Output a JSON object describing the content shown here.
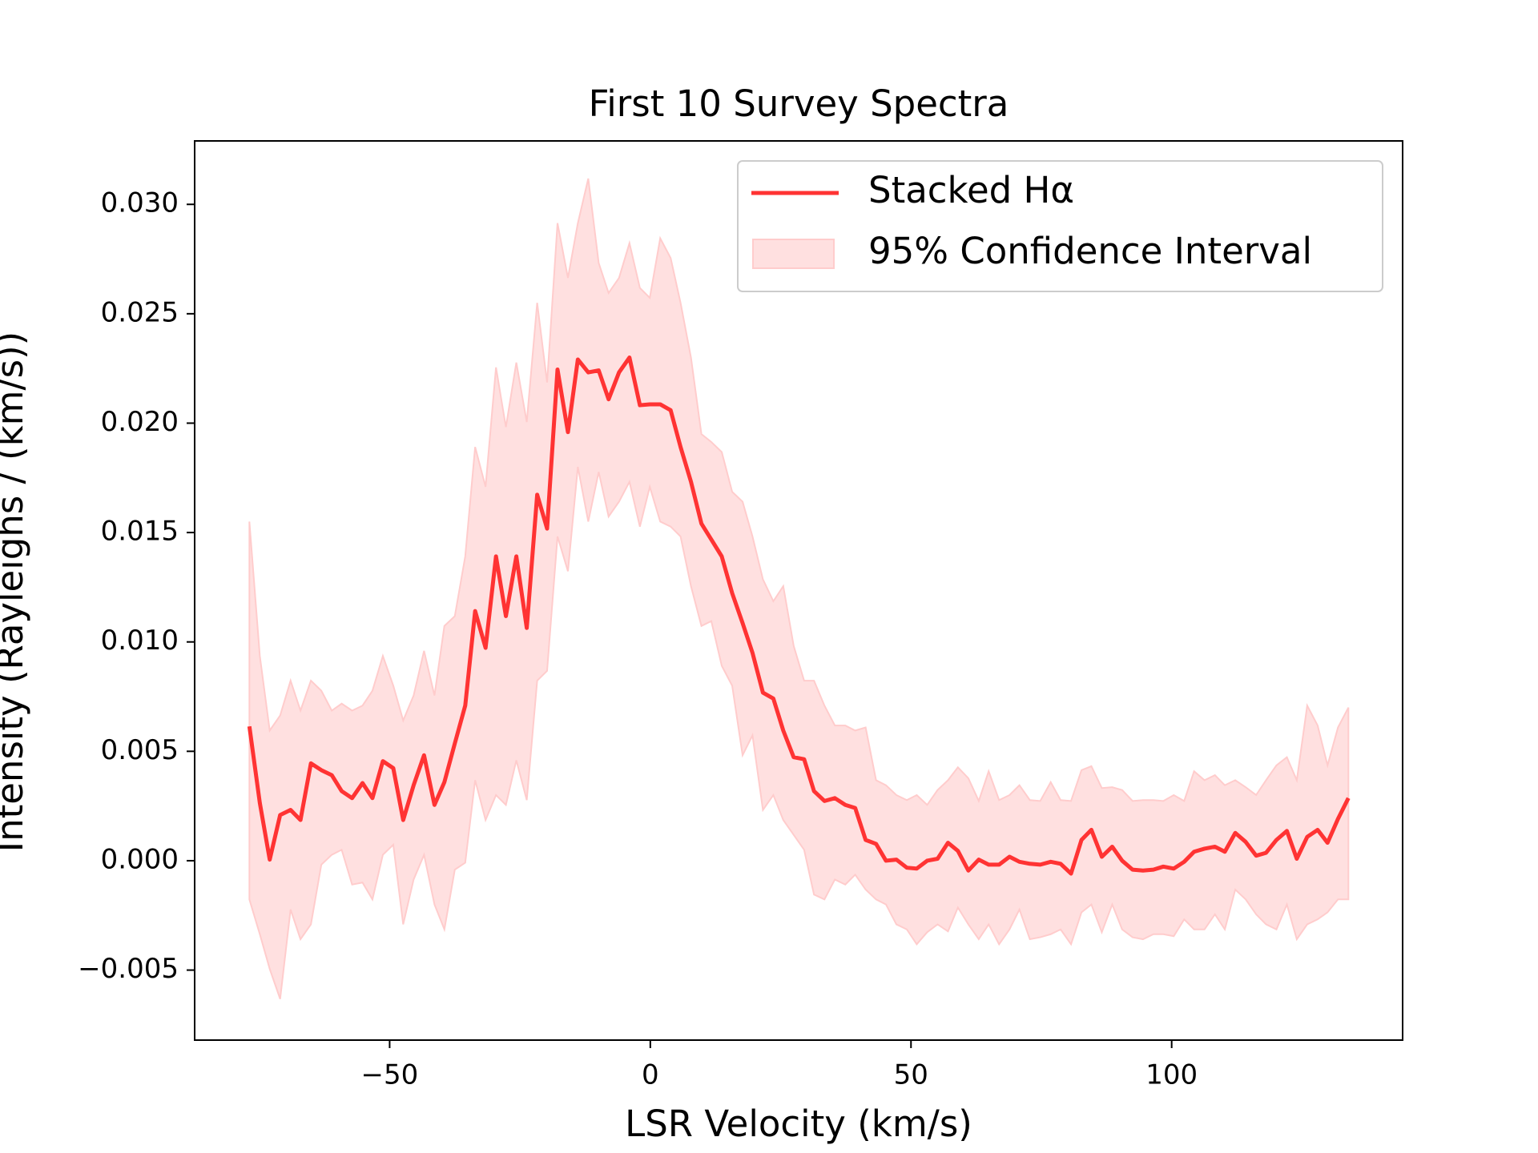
{
  "chart_data": {
    "type": "line",
    "title": "First 10 Survey Spectra",
    "x_label": "LSR Velocity (km/s)",
    "y_label": "Intensity (Rayleighs / (km/s))",
    "xlim": [
      -87.4,
      144.3
    ],
    "ylim": [
      -0.0082,
      0.0329
    ],
    "xticks": [
      {
        "value": -50,
        "label": "−50"
      },
      0,
      50,
      100
    ],
    "yticks": [
      {
        "value": -0.005,
        "label": "−0.005"
      },
      {
        "value": 0,
        "label": "0.000"
      },
      {
        "value": 0.005,
        "label": "0.005"
      },
      {
        "value": 0.01,
        "label": "0.010"
      },
      {
        "value": 0.015,
        "label": "0.015"
      },
      {
        "value": 0.02,
        "label": "0.020"
      },
      {
        "value": 0.025,
        "label": "0.025"
      },
      {
        "value": 0.03,
        "label": "0.030"
      }
    ],
    "legend": "upper right",
    "x": [
      -76.9,
      -74.9,
      -73.0,
      -71.0,
      -69.0,
      -67.1,
      -65.1,
      -63.1,
      -61.1,
      -59.2,
      -57.2,
      -55.2,
      -53.3,
      -51.3,
      -49.3,
      -47.4,
      -45.4,
      -43.4,
      -41.4,
      -39.5,
      -37.5,
      -35.5,
      -33.6,
      -31.6,
      -29.6,
      -27.7,
      -25.7,
      -23.7,
      -21.7,
      -19.8,
      -17.8,
      -15.8,
      -13.9,
      -11.9,
      -9.9,
      -8.0,
      -6.0,
      -4.0,
      -2.0,
      -0.1,
      1.9,
      3.9,
      5.8,
      7.8,
      9.8,
      11.7,
      13.7,
      15.7,
      17.7,
      19.6,
      21.6,
      23.6,
      25.5,
      27.5,
      29.5,
      31.4,
      33.4,
      35.4,
      37.4,
      39.3,
      41.3,
      43.3,
      45.2,
      47.2,
      49.2,
      51.1,
      53.1,
      55.1,
      57.1,
      59.0,
      61.0,
      63.0,
      64.9,
      66.9,
      68.9,
      70.8,
      72.8,
      74.8,
      76.8,
      78.7,
      80.7,
      82.7,
      84.6,
      86.6,
      88.6,
      90.5,
      92.5,
      94.5,
      96.5,
      98.4,
      100.4,
      102.4,
      104.3,
      106.3,
      108.3,
      110.2,
      112.2,
      114.2,
      116.2,
      118.1,
      120.1,
      122.1,
      124.0,
      126.0,
      128.0,
      129.9,
      131.9,
      133.9
    ],
    "series": [
      {
        "name": "Stacked Hα",
        "color": "#ff3333",
        "values": [
          0.00614,
          0.00264,
          5e-05,
          0.00209,
          0.00232,
          0.00186,
          0.00445,
          0.00414,
          0.00391,
          0.00318,
          0.00286,
          0.00355,
          0.00286,
          0.00455,
          0.00423,
          0.00186,
          0.00345,
          0.00482,
          0.00255,
          0.00359,
          0.00536,
          0.00709,
          0.01141,
          0.00973,
          0.01391,
          0.01118,
          0.01391,
          0.01064,
          0.01673,
          0.01518,
          0.02245,
          0.01959,
          0.02291,
          0.02232,
          0.02241,
          0.02109,
          0.02232,
          0.023,
          0.02082,
          0.02086,
          0.02086,
          0.02059,
          0.01891,
          0.01732,
          0.01541,
          0.01468,
          0.01391,
          0.01223,
          0.01086,
          0.0095,
          0.00768,
          0.00741,
          0.00595,
          0.00473,
          0.00464,
          0.00318,
          0.00273,
          0.00286,
          0.00255,
          0.00241,
          0.00095,
          0.00077,
          0,
          5e-05,
          -0.00032,
          -0.00036,
          0,
          9e-05,
          0.00082,
          0.00045,
          -0.00045,
          5e-05,
          -0.00018,
          -0.00018,
          0.00018,
          -5e-05,
          -0.00014,
          -0.00018,
          -5e-05,
          -0.00014,
          -0.00059,
          0.00095,
          0.00141,
          0.00018,
          0.00064,
          0,
          -0.00041,
          -0.00045,
          -0.00041,
          -0.00027,
          -0.00036,
          -5e-05,
          0.00041,
          0.00055,
          0.00064,
          0.00041,
          0.00127,
          0.00086,
          0.00023,
          0.00036,
          0.00095,
          0.00136,
          9e-05,
          0.00109,
          0.00141,
          0.00082,
          0.00191,
          0.00286
        ]
      },
      {
        "name": "95% Confidence Interval",
        "type": "band",
        "color": "#ffcccc",
        "upper": [
          0.0155,
          0.00936,
          0.00595,
          0.00664,
          0.00823,
          0.00686,
          0.00823,
          0.00777,
          0.00686,
          0.00718,
          0.00686,
          0.00709,
          0.00777,
          0.00936,
          0.008,
          0.00641,
          0.00755,
          0.00959,
          0.00755,
          0.01073,
          0.01118,
          0.01391,
          0.01891,
          0.01709,
          0.02255,
          0.01982,
          0.02277,
          0.02005,
          0.0255,
          0.02186,
          0.02914,
          0.02664,
          0.02914,
          0.03118,
          0.02732,
          0.02595,
          0.02664,
          0.02823,
          0.02618,
          0.02573,
          0.02845,
          0.02755,
          0.0255,
          0.023,
          0.0195,
          0.01914,
          0.01868,
          0.01686,
          0.01641,
          0.01482,
          0.01286,
          0.01186,
          0.01255,
          0.00982,
          0.00823,
          0.00823,
          0.00709,
          0.00618,
          0.00618,
          0.00595,
          0.00609,
          0.00368,
          0.00345,
          0.003,
          0.00277,
          0.003,
          0.00255,
          0.00323,
          0.00368,
          0.00427,
          0.00377,
          0.00273,
          0.00409,
          0.00277,
          0.003,
          0.00345,
          0.00277,
          0.00273,
          0.00359,
          0.00277,
          0.00273,
          0.00414,
          0.00432,
          0.00332,
          0.00336,
          0.00323,
          0.00273,
          0.00277,
          0.00277,
          0.00273,
          0.003,
          0.00273,
          0.00409,
          0.00368,
          0.00391,
          0.00345,
          0.00368,
          0.00336,
          0.003,
          0.00368,
          0.00436,
          0.00473,
          0.00368,
          0.00709,
          0.00618,
          0.00436,
          0.00609,
          0.007
        ],
        "lower": [
          -0.00177,
          -0.00336,
          -0.00495,
          -0.00632,
          -0.00223,
          -0.00359,
          -0.00291,
          -0.00018,
          0.00027,
          0.0005,
          -0.00109,
          -0.001,
          -0.00177,
          0.00027,
          0.00073,
          -0.00291,
          -0.00086,
          0.00027,
          -0.002,
          -0.00314,
          -0.00041,
          -9e-05,
          0.00368,
          0.00186,
          0.003,
          0.00255,
          0.00459,
          0.00277,
          0.00823,
          0.00868,
          0.01482,
          0.01323,
          0.018,
          0.0155,
          0.01777,
          0.01573,
          0.01641,
          0.01732,
          0.01527,
          0.01709,
          0.0155,
          0.01527,
          0.01482,
          0.01255,
          0.01073,
          0.01095,
          0.00891,
          0.008,
          0.00482,
          0.00573,
          0.00232,
          0.003,
          0.00186,
          0.00118,
          0.0005,
          -0.00155,
          -0.00177,
          -0.00086,
          -0.00109,
          -0.00064,
          -0.00132,
          -0.00177,
          -0.002,
          -0.00291,
          -0.00314,
          -0.00382,
          -0.00327,
          -0.00291,
          -0.00323,
          -0.00214,
          -0.00291,
          -0.00359,
          -0.00291,
          -0.00382,
          -0.00314,
          -0.00223,
          -0.00359,
          -0.0035,
          -0.00336,
          -0.00314,
          -0.00382,
          -0.00236,
          -0.002,
          -0.00327,
          -0.002,
          -0.00314,
          -0.0035,
          -0.00359,
          -0.00336,
          -0.00336,
          -0.00345,
          -0.00268,
          -0.00314,
          -0.00314,
          -0.00245,
          -0.00314,
          -0.00132,
          -0.00177,
          -0.00245,
          -0.00291,
          -0.00314,
          -0.002,
          -0.00359,
          -0.00291,
          -0.00268,
          -0.00236,
          -0.00177,
          -0.00177
        ]
      }
    ]
  }
}
